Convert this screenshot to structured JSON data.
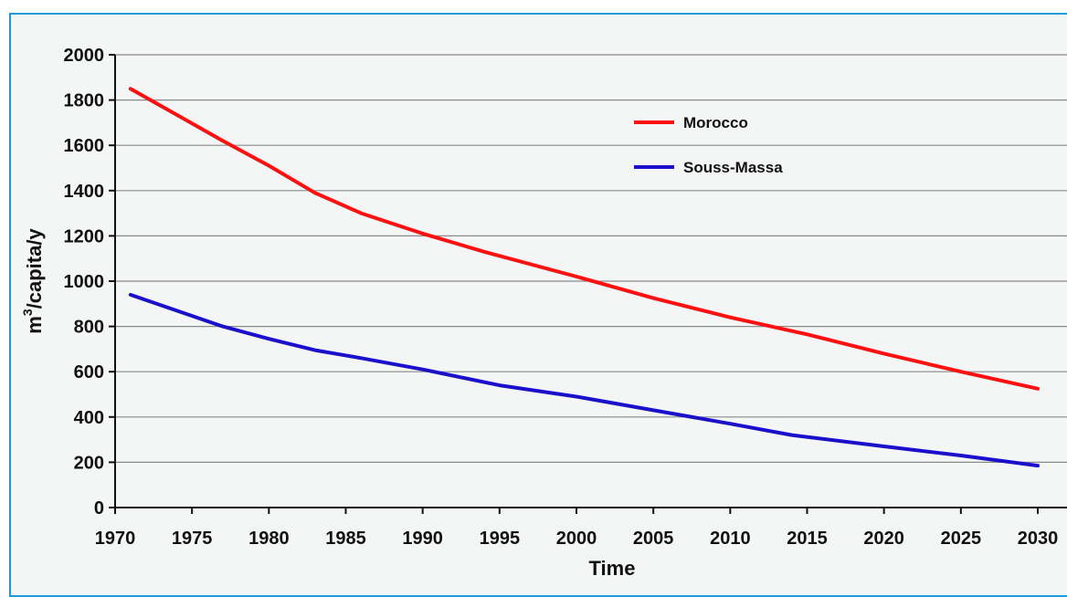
{
  "chart_data": {
    "type": "line",
    "title": "",
    "xlabel": "Time",
    "ylabel_base": "m",
    "ylabel_sup": "3",
    "ylabel_rest": "/capita/y",
    "xlim": [
      1970,
      2030
    ],
    "ylim": [
      0,
      2000
    ],
    "xticks": [
      1970,
      1975,
      1980,
      1985,
      1990,
      1995,
      2000,
      2005,
      2010,
      2015,
      2020,
      2025,
      2030
    ],
    "yticks": [
      0,
      200,
      400,
      600,
      800,
      1000,
      1200,
      1400,
      1600,
      1800,
      2000
    ],
    "grid": "horizontal",
    "legend_position": "top-right",
    "series": [
      {
        "name": "Morocco",
        "color": "#ff1010",
        "x": [
          1971,
          1977,
          1980,
          1983,
          1986,
          1990,
          1994,
          2000,
          2005,
          2010,
          2015,
          2020,
          2025,
          2030
        ],
        "y": [
          1850,
          1620,
          1510,
          1390,
          1300,
          1210,
          1130,
          1020,
          925,
          840,
          765,
          680,
          600,
          525
        ]
      },
      {
        "name": "Souss-Massa",
        "color": "#1a10cc",
        "x": [
          1971,
          1977,
          1980,
          1983,
          1986,
          1990,
          1995,
          2000,
          2005,
          2010,
          2014,
          2020,
          2025,
          2030
        ],
        "y": [
          940,
          800,
          745,
          695,
          660,
          610,
          540,
          490,
          430,
          370,
          320,
          270,
          230,
          185
        ]
      }
    ]
  }
}
